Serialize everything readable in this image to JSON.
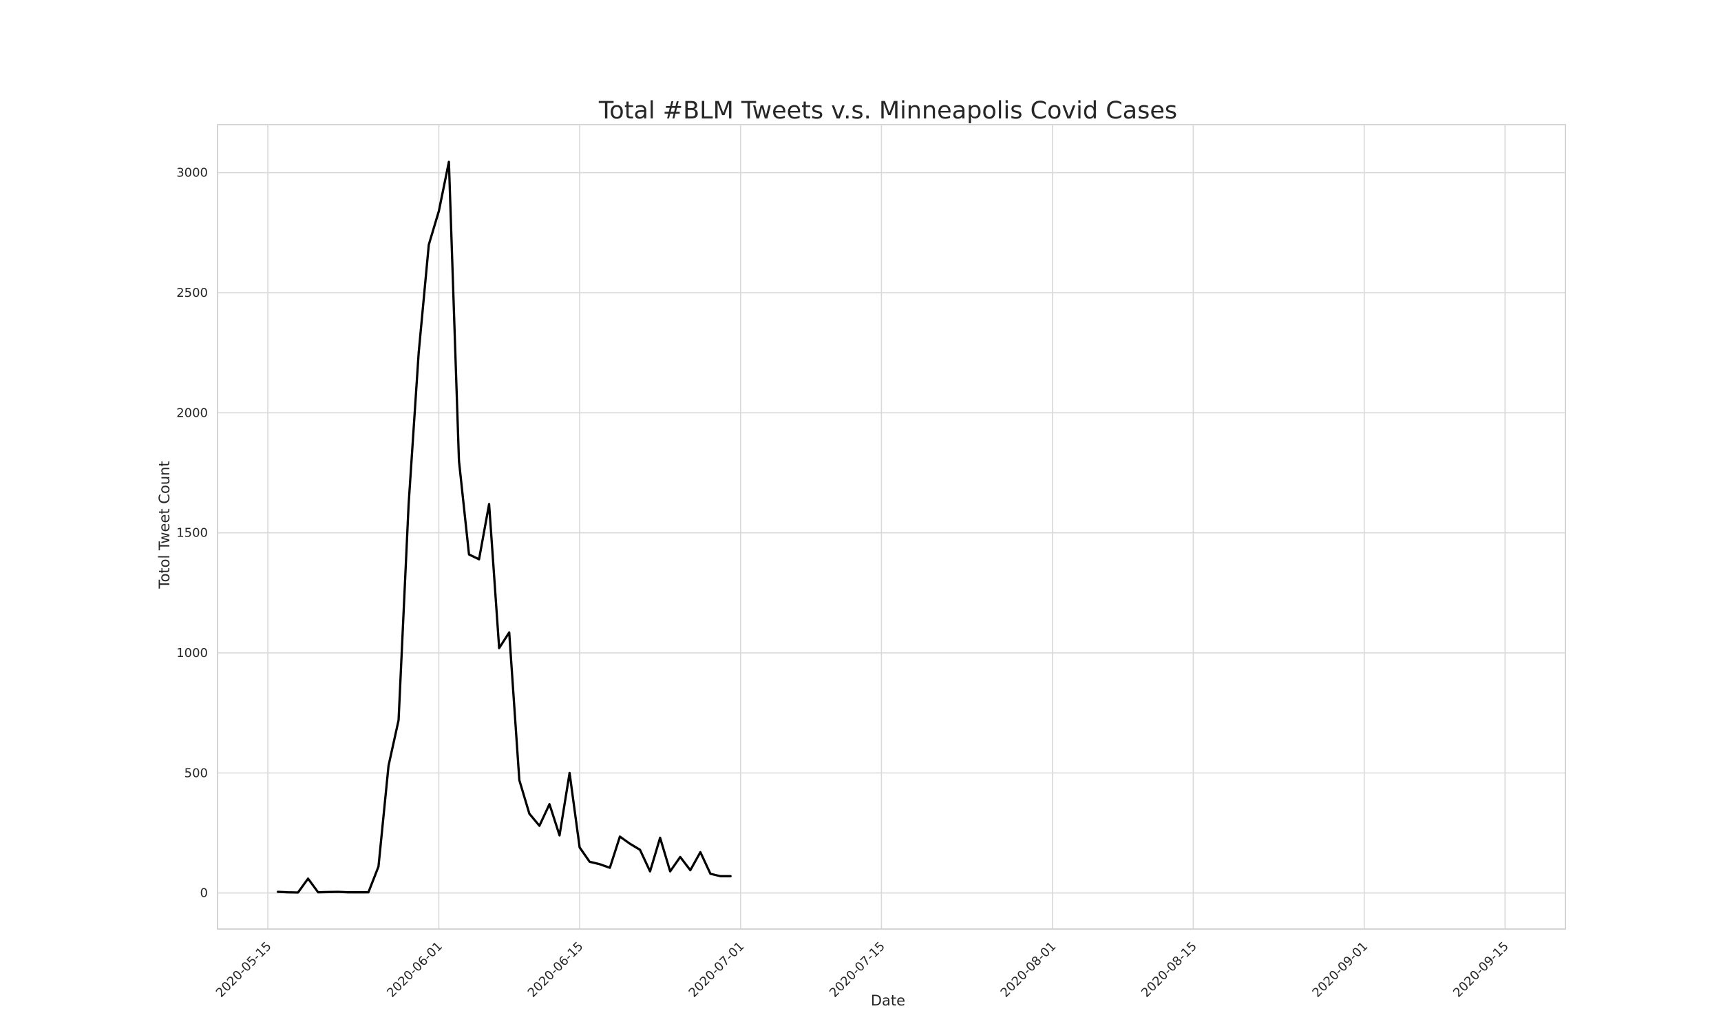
{
  "chart_data": {
    "type": "line",
    "title": "Total #BLM Tweets v.s. Minneapolis Covid Cases",
    "xlabel": "Date",
    "ylabel": "Totol Tweet Count",
    "grid": true,
    "xlim": [
      "2020-05-10",
      "2020-09-21"
    ],
    "ylim": [
      -150,
      3200
    ],
    "x_ticks": [
      "2020-05-15",
      "2020-06-01",
      "2020-06-15",
      "2020-07-01",
      "2020-07-15",
      "2020-08-01",
      "2020-08-15",
      "2020-09-01",
      "2020-09-15"
    ],
    "y_ticks": [
      0,
      500,
      1000,
      1500,
      2000,
      2500,
      3000
    ],
    "series": [
      {
        "color": "#000000",
        "x": [
          "2020-05-16",
          "2020-05-17",
          "2020-05-18",
          "2020-05-19",
          "2020-05-20",
          "2020-05-21",
          "2020-05-22",
          "2020-05-23",
          "2020-05-24",
          "2020-05-25",
          "2020-05-26",
          "2020-05-27",
          "2020-05-28",
          "2020-05-29",
          "2020-05-30",
          "2020-05-31",
          "2020-06-01",
          "2020-06-02",
          "2020-06-03",
          "2020-06-04",
          "2020-06-05",
          "2020-06-06",
          "2020-06-07",
          "2020-06-08",
          "2020-06-09",
          "2020-06-10",
          "2020-06-11",
          "2020-06-12",
          "2020-06-13",
          "2020-06-14",
          "2020-06-15",
          "2020-06-16",
          "2020-06-17",
          "2020-06-18",
          "2020-06-19",
          "2020-06-20",
          "2020-06-21",
          "2020-06-22",
          "2020-06-23",
          "2020-06-24",
          "2020-06-25",
          "2020-06-26",
          "2020-06-27",
          "2020-06-28",
          "2020-06-29",
          "2020-06-30"
        ],
        "y": [
          5,
          3,
          2,
          60,
          3,
          4,
          5,
          3,
          3,
          3,
          110,
          530,
          720,
          1620,
          2250,
          2700,
          2840,
          3045,
          1800,
          1410,
          1390,
          1620,
          1020,
          1085,
          470,
          330,
          280,
          370,
          240,
          500,
          190,
          130,
          120,
          105,
          235,
          205,
          180,
          90,
          230,
          90,
          150,
          95,
          170,
          80,
          70,
          70
        ]
      }
    ]
  }
}
